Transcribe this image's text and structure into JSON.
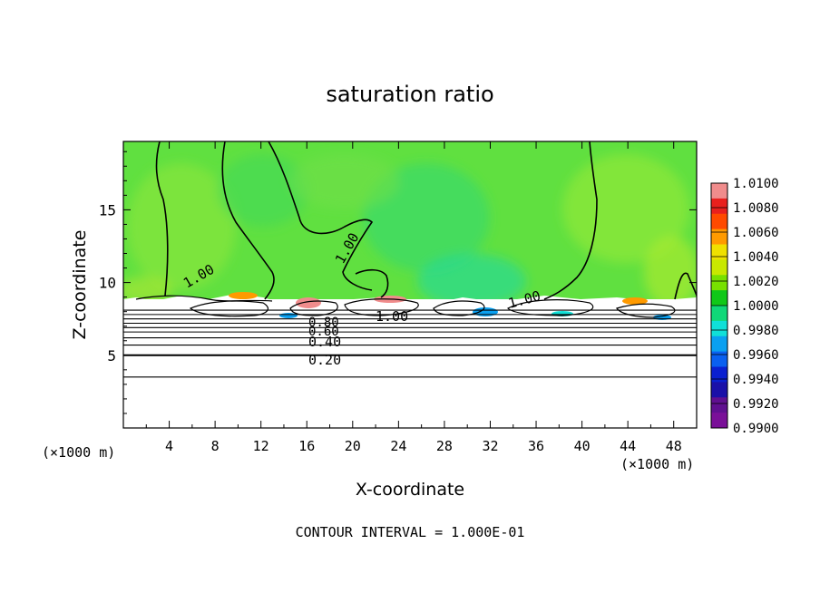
{
  "chart_data": {
    "type": "heatmap",
    "title": "saturation ratio",
    "xlabel": "X-coordinate",
    "ylabel": "Z-coordinate",
    "x_unit_left": "(×1000 m)",
    "x_unit_right": "(×1000 m)",
    "xlim": [
      0,
      50
    ],
    "ylim": [
      0,
      19.7
    ],
    "x_ticks": [
      4,
      8,
      12,
      16,
      20,
      24,
      28,
      32,
      36,
      40,
      44,
      48
    ],
    "y_ticks": [
      5,
      10,
      15
    ],
    "footer": "CONTOUR INTERVAL = 1.000E-01",
    "colorbar": {
      "min": 0.99,
      "max": 1.01,
      "labels": [
        "1.0100",
        "1.0080",
        "1.0060",
        "1.0040",
        "1.0020",
        "1.0000",
        "0.9980",
        "0.9960",
        "0.9940",
        "0.9920",
        "0.9900"
      ],
      "colors": [
        "#f08c8c",
        "#e8201e",
        "#ff4a00",
        "#ff9a00",
        "#f0e000",
        "#c8e800",
        "#78e000",
        "#10c818",
        "#10d878",
        "#10e0d8",
        "#0aa0f0",
        "#0a60f0",
        "#0a20d0",
        "#1a10a8",
        "#601090",
        "#7a1098"
      ]
    },
    "contour_labels": [
      {
        "text": "1.00"
      },
      {
        "text": "1.00"
      },
      {
        "text": "1.00"
      },
      {
        "text": "1.00"
      },
      {
        "text": "0.80"
      },
      {
        "text": "0.60"
      },
      {
        "text": "0.40"
      },
      {
        "text": "0.20"
      }
    ],
    "stratified_levels": [
      3.5,
      5.0,
      5.7,
      6.2,
      6.6,
      6.9,
      7.2,
      7.5,
      7.8,
      8.1
    ],
    "cloud_top_z": 8.6,
    "background_color": "#60e040"
  }
}
